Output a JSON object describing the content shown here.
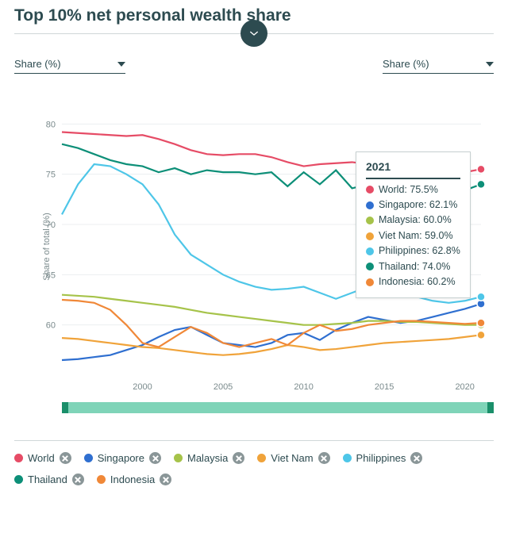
{
  "title": "Top 10% net personal wealth share",
  "selectors": {
    "y": "Share (%)",
    "y2": "Share (%)"
  },
  "y_axis_label": "Share of total (%)",
  "chart": {
    "type": "line",
    "background": "#ffffff",
    "grid_color": "#eceff0",
    "axis_text_color": "#7a8a8c",
    "xlim": [
      1995,
      2021
    ],
    "ylim": [
      55,
      82
    ],
    "xticks": [
      2000,
      2005,
      2010,
      2015,
      2020
    ],
    "yticks": [
      60,
      65,
      70,
      75,
      80
    ],
    "line_width": 2.2,
    "series": [
      {
        "name": "World",
        "color": "#e64c66",
        "values": [
          79.2,
          79.1,
          79.0,
          78.9,
          78.8,
          78.9,
          78.5,
          78.0,
          77.4,
          77.0,
          76.9,
          77.0,
          77.0,
          76.7,
          76.2,
          75.8,
          76.0,
          76.1,
          76.2,
          76.0,
          75.6,
          75.2,
          74.8,
          74.6,
          74.8,
          75.2,
          75.5
        ]
      },
      {
        "name": "Singapore",
        "color": "#2f6fd0",
        "values": [
          56.5,
          56.6,
          56.8,
          57.0,
          57.5,
          58.0,
          58.8,
          59.5,
          59.8,
          59.0,
          58.2,
          58.0,
          57.8,
          58.2,
          59.0,
          59.2,
          58.5,
          59.5,
          60.2,
          60.8,
          60.5,
          60.2,
          60.4,
          60.8,
          61.2,
          61.6,
          62.1
        ]
      },
      {
        "name": "Malaysia",
        "color": "#a6c34a",
        "values": [
          63.0,
          62.9,
          62.8,
          62.6,
          62.4,
          62.2,
          62.0,
          61.8,
          61.5,
          61.2,
          61.0,
          60.8,
          60.6,
          60.4,
          60.2,
          60.0,
          60.0,
          60.1,
          60.2,
          60.4,
          60.4,
          60.3,
          60.3,
          60.2,
          60.1,
          60.0,
          60.0
        ]
      },
      {
        "name": "Viet Nam",
        "color": "#f0a33a",
        "values": [
          58.7,
          58.6,
          58.4,
          58.2,
          58.0,
          57.8,
          57.7,
          57.5,
          57.3,
          57.1,
          57.0,
          57.1,
          57.3,
          57.6,
          58.0,
          57.8,
          57.5,
          57.6,
          57.8,
          58.0,
          58.2,
          58.3,
          58.4,
          58.5,
          58.6,
          58.8,
          59.0
        ]
      },
      {
        "name": "Philippines",
        "color": "#4ec6e8",
        "values": [
          71.0,
          74.0,
          76.0,
          75.8,
          75.0,
          74.0,
          72.0,
          69.0,
          67.0,
          66.0,
          65.0,
          64.3,
          63.8,
          63.5,
          63.6,
          63.8,
          63.2,
          62.6,
          63.2,
          63.8,
          64.0,
          63.4,
          62.8,
          62.4,
          62.2,
          62.4,
          62.8
        ]
      },
      {
        "name": "Thailand",
        "color": "#0d8f78",
        "values": [
          78.0,
          77.6,
          77.0,
          76.4,
          76.0,
          75.8,
          75.2,
          75.6,
          75.0,
          75.4,
          75.2,
          75.2,
          75.0,
          75.2,
          73.8,
          75.2,
          74.0,
          75.4,
          73.6,
          74.0,
          72.6,
          71.6,
          70.2,
          71.8,
          72.8,
          73.4,
          74.0
        ]
      },
      {
        "name": "Indonesia",
        "color": "#f08838",
        "values": [
          62.5,
          62.4,
          62.2,
          61.5,
          60.0,
          58.2,
          57.8,
          58.8,
          59.8,
          59.2,
          58.2,
          57.8,
          58.2,
          58.6,
          58.0,
          59.2,
          60.0,
          59.4,
          59.6,
          60.0,
          60.2,
          60.4,
          60.4,
          60.3,
          60.2,
          60.1,
          60.2
        ]
      }
    ]
  },
  "tooltip": {
    "year": "2021",
    "rows": [
      {
        "label": "World",
        "value": "75.5%",
        "color": "#e64c66"
      },
      {
        "label": "Singapore",
        "value": "62.1%",
        "color": "#2f6fd0"
      },
      {
        "label": "Malaysia",
        "value": "60.0%",
        "color": "#a6c34a"
      },
      {
        "label": "Viet Nam",
        "value": "59.0%",
        "color": "#f0a33a"
      },
      {
        "label": "Philippines",
        "value": "62.8%",
        "color": "#4ec6e8"
      },
      {
        "label": "Thailand",
        "value": "74.0%",
        "color": "#0d8f78"
      },
      {
        "label": "Indonesia",
        "value": "60.2%",
        "color": "#f08838"
      }
    ]
  },
  "slider": {
    "track_color": "#7fd4b8",
    "handle_color": "#1a8f6a"
  },
  "legend": [
    {
      "label": "World",
      "color": "#e64c66"
    },
    {
      "label": "Singapore",
      "color": "#2f6fd0"
    },
    {
      "label": "Malaysia",
      "color": "#a6c34a"
    },
    {
      "label": "Viet Nam",
      "color": "#f0a33a"
    },
    {
      "label": "Philippines",
      "color": "#4ec6e8"
    },
    {
      "label": "Thailand",
      "color": "#0d8f78"
    },
    {
      "label": "Indonesia",
      "color": "#f08838"
    }
  ]
}
